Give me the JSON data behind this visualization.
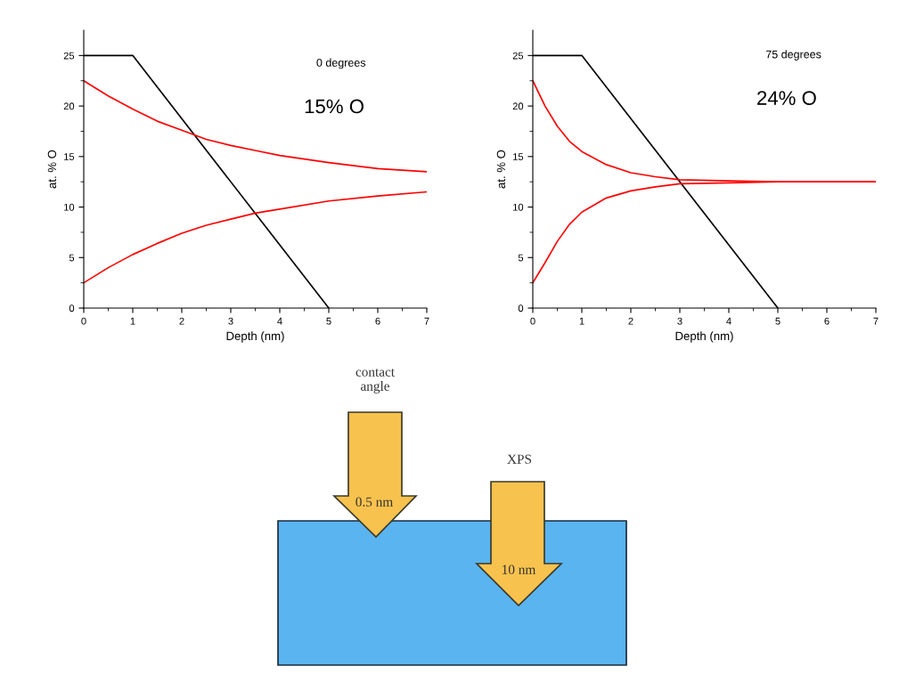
{
  "chart_data": [
    {
      "type": "line",
      "xlabel": "Depth (nm)",
      "ylabel": "at. % O",
      "xlim": [
        0,
        7
      ],
      "ylim": [
        0,
        27.5
      ],
      "xticks": [
        0,
        1,
        2,
        3,
        4,
        5,
        6,
        7
      ],
      "yticks": [
        0,
        5,
        10,
        15,
        20,
        25
      ],
      "grid": false,
      "legend": false,
      "annotations": [
        "0 degrees",
        "15% O"
      ],
      "series": [
        {
          "color": "#000000",
          "x": [
            0,
            1,
            5
          ],
          "values": [
            25,
            25,
            0
          ]
        },
        {
          "color": "#ff0000",
          "x": [
            0,
            0.5,
            1,
            1.5,
            2,
            2.5,
            3,
            3.5,
            4,
            5,
            6,
            7
          ],
          "values": [
            22.5,
            21,
            19.7,
            18.5,
            17.6,
            16.7,
            16.1,
            15.6,
            15.1,
            14.4,
            13.8,
            13.5
          ]
        },
        {
          "color": "#ff0000",
          "x": [
            0,
            0.5,
            1,
            1.5,
            2,
            2.5,
            3,
            3.5,
            4,
            5,
            6,
            7
          ],
          "values": [
            2.5,
            4,
            5.3,
            6.4,
            7.4,
            8.2,
            8.8,
            9.4,
            9.8,
            10.6,
            11.1,
            11.5
          ]
        }
      ]
    },
    {
      "type": "line",
      "xlabel": "Depth (nm)",
      "ylabel": "at. % O",
      "xlim": [
        0,
        7
      ],
      "ylim": [
        0,
        27.5
      ],
      "xticks": [
        0,
        1,
        2,
        3,
        4,
        5,
        6,
        7
      ],
      "yticks": [
        0,
        5,
        10,
        15,
        20,
        25
      ],
      "grid": false,
      "legend": false,
      "annotations": [
        "75 degrees",
        "24% O"
      ],
      "series": [
        {
          "color": "#000000",
          "x": [
            0,
            1,
            5
          ],
          "values": [
            25,
            25,
            0
          ]
        },
        {
          "color": "#ff0000",
          "x": [
            0,
            0.25,
            0.5,
            0.75,
            1,
            1.5,
            2,
            2.5,
            3,
            4,
            5,
            7
          ],
          "values": [
            22.5,
            20,
            18,
            16.5,
            15.5,
            14.2,
            13.4,
            13,
            12.7,
            12.6,
            12.5,
            12.5
          ]
        },
        {
          "color": "#ff0000",
          "x": [
            0,
            0.25,
            0.5,
            0.75,
            1,
            1.5,
            2,
            2.5,
            3,
            4,
            5,
            7
          ],
          "values": [
            2.5,
            4.5,
            6.6,
            8.3,
            9.5,
            10.9,
            11.6,
            12,
            12.3,
            12.4,
            12.5,
            12.5
          ]
        }
      ]
    },
    {
      "type": "other",
      "annotations": [
        "contact angle",
        "0.5 nm",
        "XPS",
        "10 nm"
      ]
    }
  ]
}
